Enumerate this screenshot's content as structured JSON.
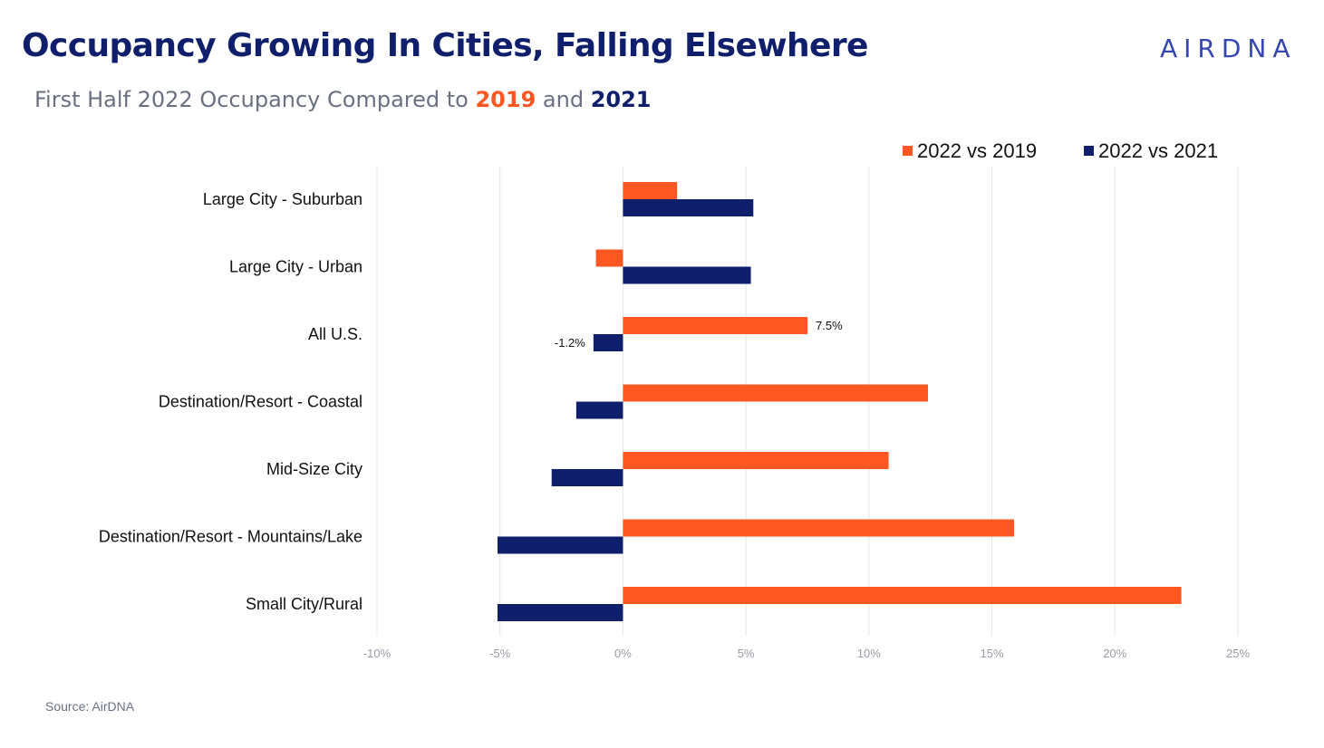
{
  "header": {
    "title": "Occupancy Growing In Cities, Falling Elsewhere",
    "logo_text": "AIRDNA",
    "subtitle_prefix": "First Half 2022 Occupancy Compared to ",
    "subtitle_year1": "2019",
    "subtitle_mid": " and ",
    "subtitle_year2": "2021"
  },
  "footer": {
    "source": "Source: AirDNA"
  },
  "colors": {
    "orange": "#ff5722",
    "navy": "#0f1f6b"
  },
  "chart_data": {
    "type": "bar",
    "orientation": "horizontal",
    "title": "First Half 2022 Occupancy Compared to 2019 and 2021",
    "categories": [
      "Large City - Suburban",
      "Large City - Urban",
      "All U.S.",
      "Destination/Resort - Coastal",
      "Mid-Size City",
      "Destination/Resort - Mountains/Lake",
      "Small City/Rural"
    ],
    "series": [
      {
        "name": "2022 vs 2019",
        "color": "#ff5722",
        "values": [
          2.2,
          -1.1,
          7.5,
          12.4,
          10.8,
          15.9,
          22.7
        ],
        "data_labels": [
          null,
          null,
          "7.5%",
          null,
          null,
          null,
          null
        ]
      },
      {
        "name": "2022 vs 2021",
        "color": "#0f1f6b",
        "values": [
          5.3,
          5.2,
          -1.2,
          -1.9,
          -2.9,
          -5.1,
          -5.1
        ],
        "data_labels": [
          null,
          null,
          "-1.2%",
          null,
          null,
          null,
          null
        ]
      }
    ],
    "xlim": [
      -10,
      25
    ],
    "xticks": [
      -10,
      -5,
      0,
      5,
      10,
      15,
      20,
      25
    ],
    "xtick_labels": [
      "-10%",
      "-5%",
      "0%",
      "5%",
      "10%",
      "15%",
      "20%",
      "25%"
    ],
    "grid": true,
    "legend_position": "top-right",
    "xlabel": "",
    "ylabel": ""
  }
}
